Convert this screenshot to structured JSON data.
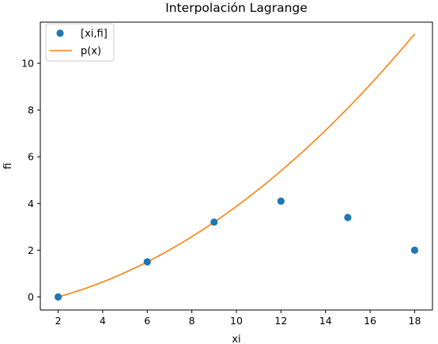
{
  "chart_data": {
    "type": "scatter",
    "title": "Interpolación Lagrange",
    "xlabel": "xi",
    "ylabel": "fi",
    "xlim": [
      1.2,
      18.8
    ],
    "ylim": [
      -0.56,
      11.76
    ],
    "xticks": [
      2,
      4,
      6,
      8,
      10,
      12,
      14,
      16,
      18
    ],
    "yticks": [
      0,
      2,
      4,
      6,
      8,
      10
    ],
    "grid": false,
    "legend_position": "top-left",
    "series": [
      {
        "name": "[xi,fi]",
        "kind": "points",
        "color": "#1f77b4",
        "x": [
          2,
          6,
          9,
          12,
          15,
          18
        ],
        "y": [
          0.0,
          1.5,
          3.2,
          4.1,
          3.4,
          2.0
        ]
      },
      {
        "name": "p(x)",
        "kind": "line",
        "color": "#ff7f0e",
        "function": "lagrange through (2,0), (6,1.5), (9,3.2)",
        "x_range": [
          2,
          18
        ]
      }
    ]
  }
}
